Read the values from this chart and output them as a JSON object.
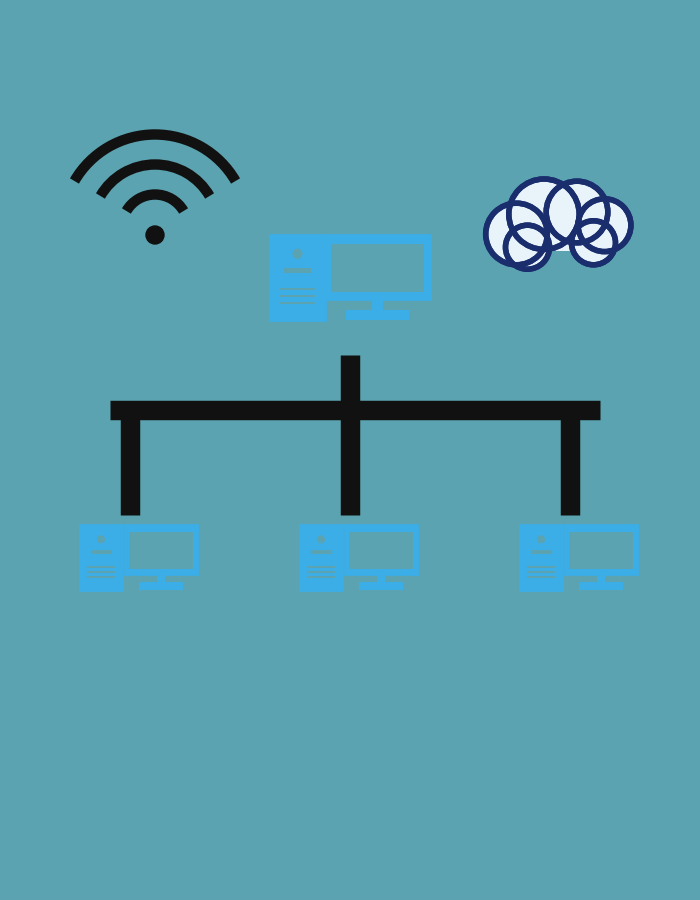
{
  "bg_color": "#5ba3b0",
  "wifi_color": "#111111",
  "computer_color": "#3baee8",
  "cloud_fill": "#e8f4fa",
  "cloud_stroke": "#1a2e6e",
  "network_line_color": "#111111",
  "fig_width": 7.0,
  "fig_height": 9.0,
  "dpi": 100
}
